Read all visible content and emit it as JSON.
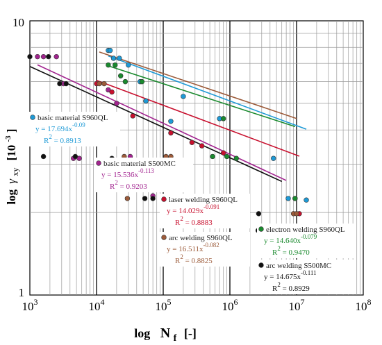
{
  "chart_data": {
    "type": "scatter",
    "xscale": "log",
    "yscale": "log",
    "xlim": [
      1000,
      100000000
    ],
    "ylim": [
      1,
      10
    ],
    "xlabel": {
      "main": "log",
      "var": "N",
      "sub": "f",
      "unit": "[-]"
    },
    "ylabel": {
      "main": "log",
      "var": "γ",
      "sub": "xy",
      "unit": "[10",
      "exp": "-3",
      "close": "]"
    },
    "xticks": [
      {
        "base": "10",
        "exp": "3"
      },
      {
        "base": "10",
        "exp": "4"
      },
      {
        "base": "10",
        "exp": "5"
      },
      {
        "base": "10",
        "exp": "6"
      },
      {
        "base": "10",
        "exp": "7"
      },
      {
        "base": "10",
        "exp": "8"
      }
    ],
    "yticks": [
      "1",
      "10"
    ],
    "grid": true,
    "series": [
      {
        "name": "basic material S960QL",
        "color": "#1e9ad6",
        "equation": {
          "prefix": "y = 17.694x",
          "exp": "-0.09"
        },
        "r2": {
          "prefix": "R",
          "exp": "2",
          "value": " = 0.8913"
        },
        "points": [
          [
            15000,
            7.8
          ],
          [
            16000,
            7.8
          ],
          [
            18000,
            7.3
          ],
          [
            22000,
            7.3
          ],
          [
            30000,
            6.9
          ],
          [
            45000,
            6.0
          ],
          [
            55000,
            5.1
          ],
          [
            200000,
            5.3
          ],
          [
            130000,
            4.3
          ],
          [
            700000,
            4.4
          ],
          [
            4500000,
            3.15
          ],
          [
            7500000,
            2.25
          ],
          [
            9500000,
            2.25
          ],
          [
            14000000,
            2.22
          ]
        ],
        "fit": {
          "a": 17.694,
          "b": -0.09,
          "x": [
            15000,
            14000000
          ]
        }
      },
      {
        "name": "basic material S500MC",
        "color": "#a2248f",
        "equation": {
          "prefix": "y = 15.536x",
          "exp": "-0.113"
        },
        "r2": {
          "prefix": "R",
          "exp": "2",
          "value": " = 0.9203"
        },
        "points": [
          [
            1300,
            7.4
          ],
          [
            1600,
            7.4
          ],
          [
            2500,
            7.4
          ],
          [
            3200,
            5.9
          ],
          [
            4500,
            3.15
          ],
          [
            5500,
            3.15
          ],
          [
            11000,
            4.4
          ],
          [
            15000,
            5.6
          ],
          [
            20000,
            5.0
          ],
          [
            32000,
            3.2
          ],
          [
            70000,
            2.3
          ],
          [
            6000000,
            1.75
          ]
        ],
        "fit": {
          "a": 15.536,
          "b": -0.113,
          "x": [
            1300,
            7000000
          ]
        }
      },
      {
        "name": "laser welding S960QL",
        "color": "#c8102e",
        "equation": {
          "prefix": "y = 14.029x",
          "exp": "-0.091"
        },
        "r2": {
          "prefix": "R",
          "exp": "2",
          "value": " = 0.8883"
        },
        "points": [
          [
            10000,
            5.9
          ],
          [
            17000,
            5.5
          ],
          [
            35000,
            4.5
          ],
          [
            130000,
            3.9
          ],
          [
            270000,
            3.6
          ],
          [
            380000,
            3.5
          ],
          [
            800000,
            3.3
          ],
          [
            11000000,
            1.98
          ],
          [
            12000,
            4.5
          ]
        ],
        "fit": {
          "a": 14.029,
          "b": -0.091,
          "x": [
            10000,
            11000000
          ]
        }
      },
      {
        "name": "arc welding S960QL",
        "color": "#9c5b3a",
        "equation": {
          "prefix": "y = 16.511x",
          "exp": "-0.082"
        },
        "r2": {
          "prefix": "R",
          "exp": "2",
          "value": " = 0.8825"
        },
        "points": [
          [
            11000,
            5.9
          ],
          [
            13000,
            5.9
          ],
          [
            26000,
            3.2
          ],
          [
            29000,
            2.25
          ],
          [
            110000,
            3.2
          ],
          [
            130000,
            3.2
          ],
          [
            280000,
            2.25
          ],
          [
            290000,
            2.25
          ],
          [
            9000000,
            1.98
          ],
          [
            10000000,
            1.98
          ]
        ],
        "fit": {
          "a": 16.511,
          "b": -0.082,
          "x": [
            11000,
            10000000
          ]
        }
      },
      {
        "name": "electron welding S960QL",
        "color": "#1a8a2e",
        "equation": {
          "prefix": "y = 14.640x",
          "exp": "-0.079"
        },
        "r2": {
          "prefix": "R",
          "exp": "2",
          "value": " = 0.9470"
        },
        "points": [
          [
            15000,
            6.9
          ],
          [
            19000,
            6.9
          ],
          [
            23000,
            6.3
          ],
          [
            27000,
            6.0
          ],
          [
            48000,
            6.0
          ],
          [
            550000,
            3.2
          ],
          [
            800000,
            4.4
          ],
          [
            900000,
            3.2
          ],
          [
            1250000,
            3.15
          ],
          [
            9500000,
            2.25
          ]
        ],
        "fit": {
          "a": 14.64,
          "b": -0.079,
          "x": [
            15000,
            9500000
          ]
        }
      },
      {
        "name": "arc welding S500MC",
        "color": "#111111",
        "equation": {
          "prefix": "y = 14.675x",
          "exp": "-0.111"
        },
        "r2": {
          "prefix": "R",
          "exp": "2",
          "value": " = 0.8929"
        },
        "points": [
          [
            1000,
            7.4
          ],
          [
            1900,
            7.4
          ],
          [
            2800,
            5.9
          ],
          [
            3500,
            5.9
          ],
          [
            1600,
            3.2
          ],
          [
            4800,
            3.2
          ],
          [
            17000,
            3.15
          ],
          [
            53000,
            2.25
          ],
          [
            70000,
            2.25
          ],
          [
            720000,
            1.98
          ],
          [
            1650000,
            1.98
          ],
          [
            2700000,
            1.98
          ],
          [
            2650000,
            1.72
          ],
          [
            4500000,
            1.72
          ],
          [
            5000000,
            1.72
          ]
        ],
        "fit": {
          "a": 14.675,
          "b": -0.111,
          "x": [
            1000,
            6000000
          ]
        }
      }
    ]
  }
}
